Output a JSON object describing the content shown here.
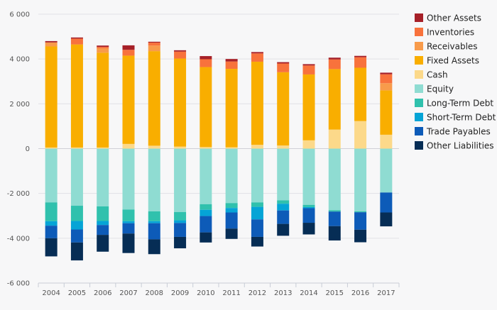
{
  "chart_data": {
    "type": "bar",
    "stacked": true,
    "title": "",
    "xlabel": "",
    "ylabel": "",
    "categories": [
      "2004",
      "2005",
      "2006",
      "2007",
      "2008",
      "2009",
      "2010",
      "2011",
      "2012",
      "2013",
      "2014",
      "2015",
      "2016",
      "2017"
    ],
    "ylim": [
      -6000,
      6000
    ],
    "yticks": [
      -6000,
      -4000,
      -2000,
      0,
      2000,
      4000,
      6000
    ],
    "ytick_labels": [
      "-6 000",
      "-4 000",
      "-2 000",
      "0",
      "2 000",
      "4 000",
      "6 000"
    ],
    "grid": true,
    "legend_position": "right",
    "assets": [
      {
        "name": "Cash",
        "color": "#fcd98a",
        "values": [
          50,
          50,
          50,
          210,
          130,
          90,
          70,
          60,
          170,
          140,
          370,
          850,
          1230,
          620
        ]
      },
      {
        "name": "Fixed Assets",
        "color": "#f9ae00",
        "values": [
          4510,
          4600,
          4230,
          3940,
          4220,
          3930,
          3570,
          3500,
          3710,
          3270,
          2940,
          2700,
          2380,
          1980
        ]
      },
      {
        "name": "Receivables",
        "color": "#f89b4b",
        "values": [
          180,
          0,
          200,
          0,
          250,
          0,
          0,
          0,
          0,
          0,
          0,
          0,
          0,
          320
        ]
      },
      {
        "name": "Inventories",
        "color": "#f8723c",
        "values": [
          0,
          260,
          60,
          260,
          130,
          310,
          350,
          330,
          370,
          390,
          400,
          430,
          470,
          400
        ]
      },
      {
        "name": "Other Assets",
        "color": "#a62028",
        "values": [
          60,
          50,
          60,
          200,
          40,
          60,
          140,
          110,
          60,
          60,
          60,
          80,
          60,
          70
        ]
      }
    ],
    "liabilities": [
      {
        "name": "Equity",
        "color": "#8fdcd2",
        "values": [
          -2400,
          -2550,
          -2580,
          -2720,
          -2800,
          -2830,
          -2480,
          -2430,
          -2400,
          -2310,
          -2510,
          -2750,
          -2800,
          -1960
        ]
      },
      {
        "name": "Long-Term Debt",
        "color": "#30c1ad",
        "values": [
          -840,
          -680,
          -650,
          -520,
          -440,
          -370,
          -250,
          -220,
          -200,
          -150,
          -100,
          -60,
          -40,
          0
        ]
      },
      {
        "name": "Short-Term Debt",
        "color": "#05a4d6",
        "values": [
          -200,
          -380,
          -180,
          -90,
          -90,
          -120,
          -280,
          -200,
          -560,
          -300,
          -50,
          0,
          0,
          0
        ]
      },
      {
        "name": "Trade Payables",
        "color": "#0d5bb8",
        "values": [
          -560,
          -580,
          -440,
          -460,
          -720,
          -620,
          -730,
          -720,
          -780,
          -600,
          -650,
          -650,
          -780,
          -890
        ]
      },
      {
        "name": "Other Liabilities",
        "color": "#062d55",
        "values": [
          -810,
          -800,
          -750,
          -870,
          -660,
          -510,
          -450,
          -460,
          -430,
          -530,
          -520,
          -640,
          -560,
          -620
        ]
      }
    ],
    "legend": [
      {
        "name": "Other Assets",
        "color": "#a62028"
      },
      {
        "name": "Inventories",
        "color": "#f8723c"
      },
      {
        "name": "Receivables",
        "color": "#f89b4b"
      },
      {
        "name": "Fixed Assets",
        "color": "#f9ae00"
      },
      {
        "name": "Cash",
        "color": "#fcd98a"
      },
      {
        "name": "Equity",
        "color": "#8fdcd2"
      },
      {
        "name": "Long-Term Debt",
        "color": "#30c1ad"
      },
      {
        "name": "Short-Term Debt",
        "color": "#05a4d6"
      },
      {
        "name": "Trade Payables",
        "color": "#0d5bb8"
      },
      {
        "name": "Other Liabilities",
        "color": "#062d55"
      }
    ]
  }
}
